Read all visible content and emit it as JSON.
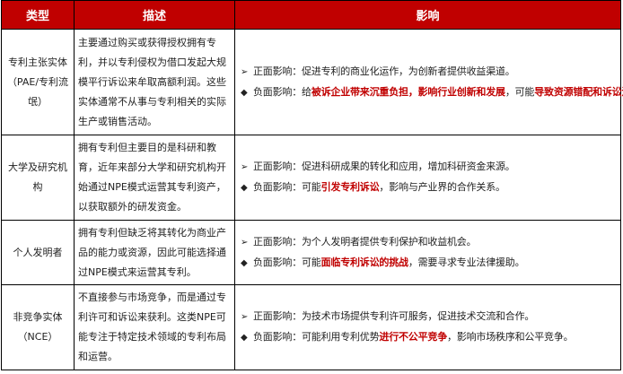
{
  "colors": {
    "header_bg": "#c00000",
    "highlight": "#c00000"
  },
  "headers": [
    "类型",
    "描述",
    "影响"
  ],
  "rows": [
    {
      "type_lines": [
        "专利主张实体",
        "（PAE/专利流氓）"
      ],
      "description": "主要通过购买或获得授权拥有专利，并以专利侵权为借口发起大规模平行诉讼来牟取高额利润。这些实体通常不从事与专利相关的实际生产或销售活动。",
      "positive": {
        "bullet": "➢",
        "segments": [
          {
            "text": "正面影响：促进专利的商业化运作，为创新者提供收益渠道。",
            "hl": false
          }
        ]
      },
      "negative": {
        "bullet": "◆",
        "segments": [
          {
            "text": "负面影响：给",
            "hl": false
          },
          {
            "text": "被诉企业带来沉重负担，影响行业创新和发展",
            "hl": true
          },
          {
            "text": "，可能",
            "hl": false
          },
          {
            "text": "导致资源错配和诉讼泛滥",
            "hl": true
          },
          {
            "text": "。",
            "hl": false
          }
        ]
      }
    },
    {
      "type_lines": [
        "大学及研究机构"
      ],
      "description": "拥有专利但主要目的是科研和教育，近年来部分大学和研究机构开始通过NPE模式运营其专利资产，以获取额外的研发资金。",
      "positive": {
        "bullet": "➢",
        "segments": [
          {
            "text": "正面影响：促进科研成果的转化和应用，增加科研资金来源。",
            "hl": false
          }
        ]
      },
      "negative": {
        "bullet": "◆",
        "segments": [
          {
            "text": "负面影响：可能",
            "hl": false
          },
          {
            "text": "引发专利诉讼",
            "hl": true
          },
          {
            "text": "，影响与产业界的合作关系。",
            "hl": false
          }
        ]
      }
    },
    {
      "type_lines": [
        "个人发明者"
      ],
      "description": "拥有专利但缺乏将其转化为商业产品的能力或资源，因此可能选择通过NPE模式来运营其专利。",
      "positive": {
        "bullet": "➢",
        "segments": [
          {
            "text": "正面影响：为个人发明者提供专利保护和收益机会。",
            "hl": false
          }
        ]
      },
      "negative": {
        "bullet": "◆",
        "segments": [
          {
            "text": "负面影响：可能",
            "hl": false
          },
          {
            "text": "面临专利诉讼的挑战",
            "hl": true
          },
          {
            "text": "，需要寻求专业法律援助。",
            "hl": false
          }
        ]
      }
    },
    {
      "type_lines": [
        "非竞争实体",
        "（NCE）"
      ],
      "description": "不直接参与市场竞争，而是通过专利许可和诉讼来获利。这类NPE可能专注于特定技术领域的专利布局和运营。",
      "positive": {
        "bullet": "➢",
        "segments": [
          {
            "text": "正面影响：为技术市场提供专利许可服务，促进技术交流和合作。",
            "hl": false
          }
        ]
      },
      "negative": {
        "bullet": "◆",
        "segments": [
          {
            "text": "负面影响：可能利用专利优势",
            "hl": false
          },
          {
            "text": "进行不公平竞争",
            "hl": true
          },
          {
            "text": "，影响市场秩序和公平竞争。",
            "hl": false
          }
        ]
      }
    }
  ]
}
